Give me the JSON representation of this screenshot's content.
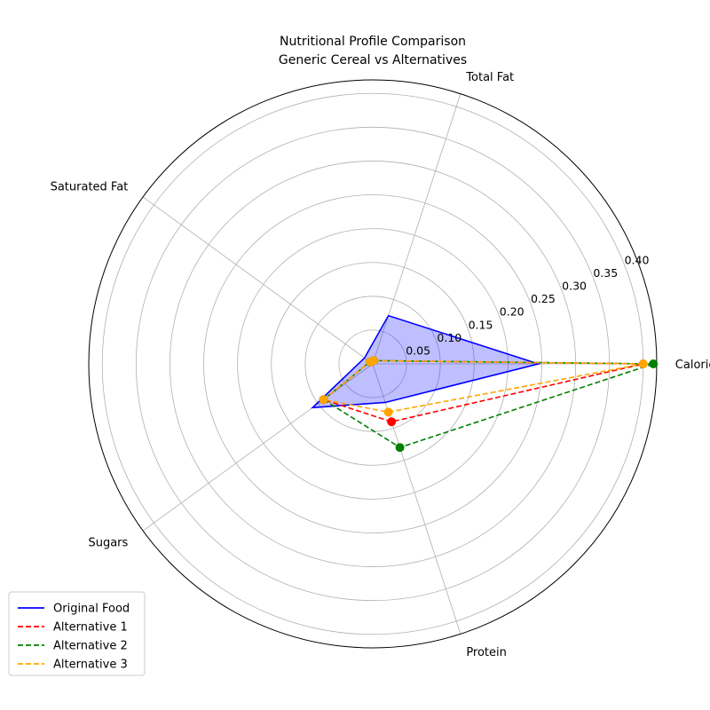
{
  "chart_data": {
    "type": "radar",
    "title_line1": "Nutritional Profile Comparison",
    "title_line2": "Generic Cereal vs Alternatives",
    "categories": [
      "Calories",
      "Total Fat",
      "Saturated Fat",
      "Sugars",
      "Protein"
    ],
    "rlim": [
      0,
      0.42
    ],
    "rticks": [
      0.05,
      0.1,
      0.15,
      0.2,
      0.25,
      0.3,
      0.35,
      0.4
    ],
    "rtick_labels": [
      "0.05",
      "0.10",
      "0.15",
      "0.20",
      "0.25",
      "0.30",
      "0.35",
      "0.40"
    ],
    "grid": true,
    "legend_position": "lower-left",
    "series": [
      {
        "name": "Original Food",
        "color": "#0000ff",
        "style": "solid",
        "markers": false,
        "fill": true,
        "values": [
          0.245,
          0.075,
          0.015,
          0.11,
          0.06
        ]
      },
      {
        "name": "Alternative 1",
        "color": "#ff0000",
        "style": "dashed",
        "markers": true,
        "fill": false,
        "values": [
          0.4,
          0.005,
          0.005,
          0.09,
          0.09
        ]
      },
      {
        "name": "Alternative 2",
        "color": "#008000",
        "style": "dashed",
        "markers": true,
        "fill": false,
        "values": [
          0.415,
          0.005,
          0.005,
          0.09,
          0.13
        ]
      },
      {
        "name": "Alternative 3",
        "color": "#ffa500",
        "style": "dashed",
        "markers": true,
        "fill": false,
        "values": [
          0.4,
          0.005,
          0.005,
          0.09,
          0.075
        ]
      }
    ]
  }
}
